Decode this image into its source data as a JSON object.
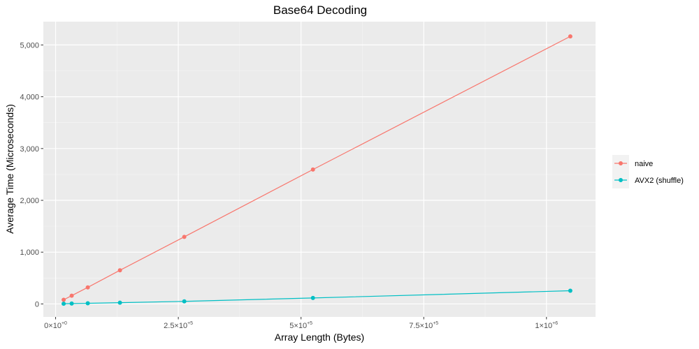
{
  "chart_data": {
    "type": "line",
    "title": "Base64 Decoding",
    "xlabel": "Array Length (Bytes)",
    "ylabel": "Average Time (Microseconds)",
    "xlim": [
      -25000,
      1100000
    ],
    "ylim": [
      -250,
      5450
    ],
    "x_ticks": [
      {
        "value": 0,
        "mantissa": "0",
        "exponent": "+0"
      },
      {
        "value": 250000,
        "mantissa": "2.5",
        "exponent": "+5"
      },
      {
        "value": 500000,
        "mantissa": "5",
        "exponent": "+5"
      },
      {
        "value": 750000,
        "mantissa": "7.5",
        "exponent": "+5"
      },
      {
        "value": 1000000,
        "mantissa": "1",
        "exponent": "+6"
      }
    ],
    "y_ticks": [
      {
        "value": 0,
        "label": "0"
      },
      {
        "value": 1000,
        "label": "1,000"
      },
      {
        "value": 2000,
        "label": "2,000"
      },
      {
        "value": 3000,
        "label": "3,000"
      },
      {
        "value": 4000,
        "label": "4,000"
      },
      {
        "value": 5000,
        "label": "5,000"
      }
    ],
    "grid": true,
    "legend_position": "right",
    "x": [
      16384,
      32768,
      65536,
      131072,
      262144,
      524288,
      1048576
    ],
    "series": [
      {
        "name": "naive",
        "color": "#F8766D",
        "values": [
          80,
          160,
          320,
          650,
          1295,
          2595,
          5165
        ]
      },
      {
        "name": "AVX2 (shuffle)",
        "color": "#00BFC4",
        "values": [
          4,
          8,
          12,
          25,
          50,
          115,
          255
        ]
      }
    ]
  }
}
